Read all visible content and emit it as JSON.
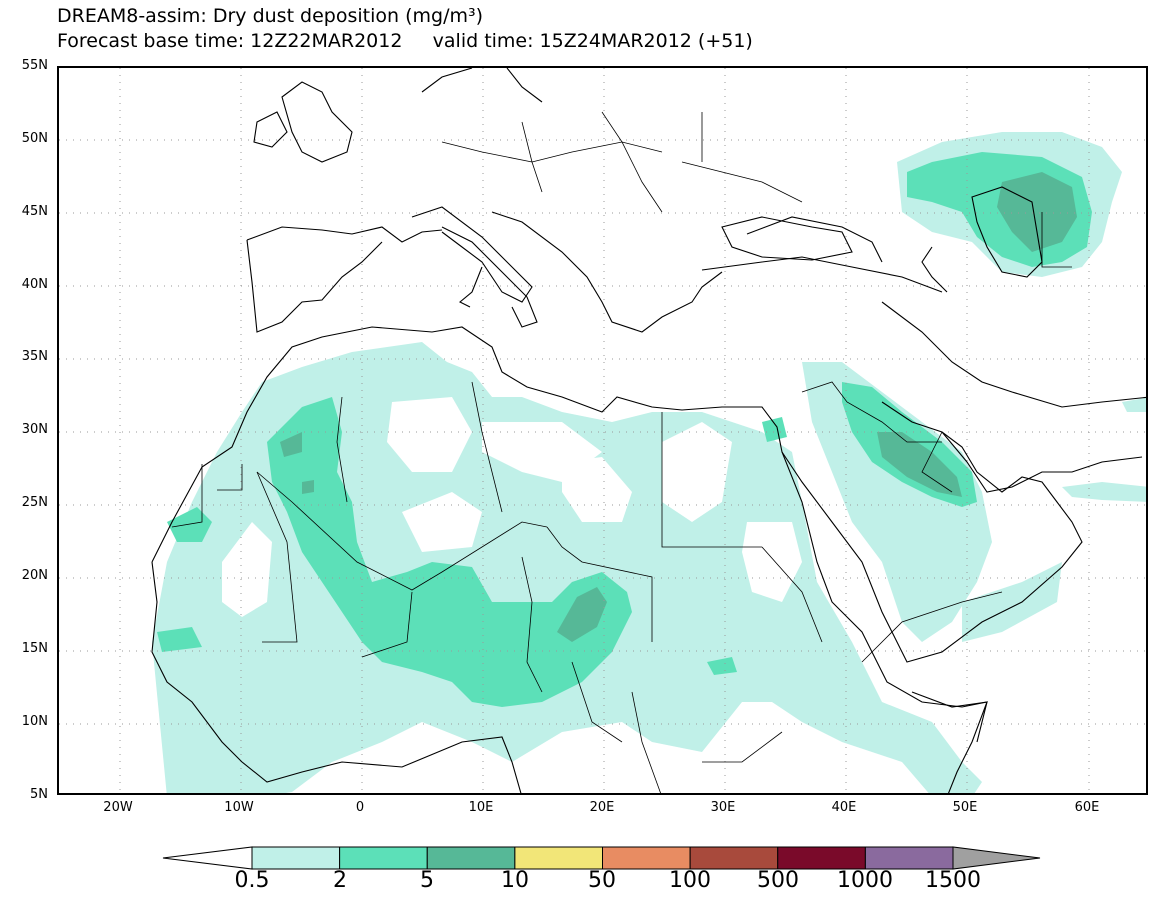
{
  "title": {
    "line1": "DREAM8-assim: Dry dust deposition (mg/m³)",
    "line2": "Forecast base time: 12Z22MAR2012     valid time: 15Z24MAR2012 (+51)"
  },
  "axes": {
    "lat_labels": [
      "55N",
      "50N",
      "45N",
      "40N",
      "35N",
      "30N",
      "25N",
      "20N",
      "15N",
      "10N",
      "5N"
    ],
    "lon_labels": [
      "20W",
      "10W",
      "0",
      "10E",
      "20E",
      "30E",
      "40E",
      "50E",
      "60E"
    ]
  },
  "legend": {
    "items": [
      {
        "label": "0.5",
        "color": "#c0f0e8"
      },
      {
        "label": "2",
        "color": "#5ce0b8"
      },
      {
        "label": "5",
        "color": "#56b897"
      },
      {
        "label": "10",
        "color": "#f2e678"
      },
      {
        "label": "50",
        "color": "#e88c62"
      },
      {
        "label": "100",
        "color": "#a84a3c"
      },
      {
        "label": "500",
        "color": "#7a0a2a"
      },
      {
        "label": "1000",
        "color": "#8a6a9e"
      },
      {
        "label": "1500",
        "color": "#a0a0a0"
      }
    ],
    "under_color": "#ffffff",
    "over_color": "#a0a0a0"
  },
  "map": {
    "region": "North Africa, Middle East and Europe",
    "lon_range": [
      -25,
      65
    ],
    "lat_range": [
      5,
      55
    ],
    "grid": "dotted"
  }
}
